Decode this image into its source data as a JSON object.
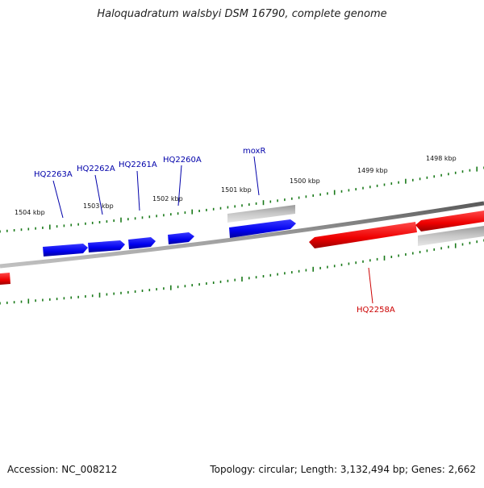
{
  "title": "Haloquadratum walsbyi DSM 16790, complete genome",
  "footer": {
    "accession": "Accession: NC_008212",
    "info": "Topology: circular; Length: 3,132,494 bp; Genes: 2,662"
  },
  "colors": {
    "backbone": "#808080",
    "tick": "#1a7a1a",
    "forward_gene": "#0000ee",
    "reverse_gene": "#ee0000",
    "rna_gene": "#b8b8b8",
    "forward_label": "#0000aa",
    "reverse_label": "#cc0000"
  },
  "scale_labels": [
    "1504 kbp",
    "1503 kbp",
    "1502 kbp",
    "1501 kbp",
    "1500 kbp",
    "1499 kbp",
    "1498 kbp"
  ],
  "gene_labels": [
    {
      "name": "HQ2263A",
      "strand": "forward"
    },
    {
      "name": "HQ2262A",
      "strand": "forward"
    },
    {
      "name": "HQ2261A",
      "strand": "forward"
    },
    {
      "name": "HQ2260A",
      "strand": "forward"
    },
    {
      "name": "moxR",
      "strand": "forward"
    },
    {
      "name": "HQ2258A",
      "strand": "reverse"
    }
  ]
}
